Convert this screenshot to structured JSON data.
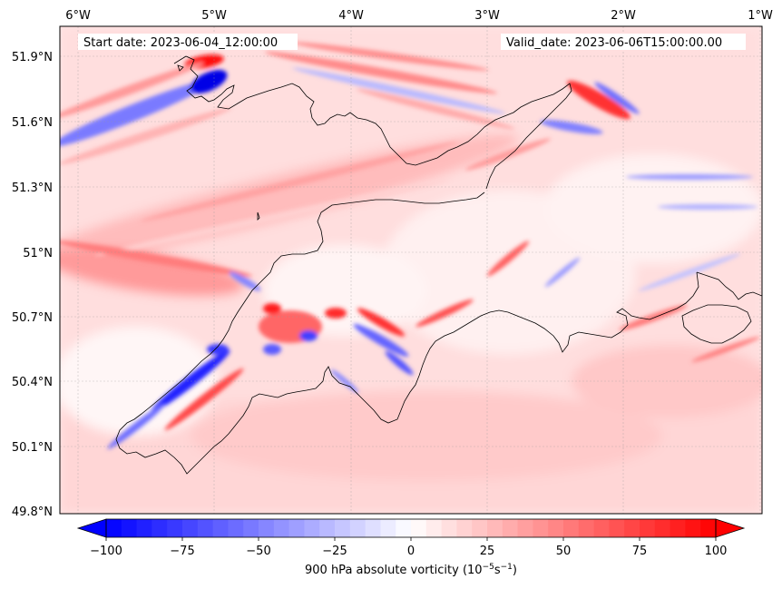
{
  "map": {
    "start_label": "Start date: 2023-06-04_12:00:00",
    "valid_label": "Valid_date: 2023-06-06T15:00:00.00",
    "lon_ticks": [
      "6°W",
      "5°W",
      "4°W",
      "3°W",
      "2°W",
      "1°W"
    ],
    "lat_ticks": [
      "51.9°N",
      "51.6°N",
      "51.3°N",
      "51°N",
      "50.7°N",
      "50.4°N",
      "50.1°N",
      "49.8°N"
    ],
    "extent": {
      "lon_min": -6.15,
      "lon_max": -1.0,
      "lat_min": 49.8,
      "lat_max": 52.05
    },
    "gridlines": true,
    "colors": {
      "positive": "#ff0000",
      "negative": "#0000ff",
      "neutral": "#ffffff",
      "coastline": "#000000"
    }
  },
  "colorbar": {
    "label_prefix": "900 hPa absolute vorticity (10",
    "label_exp1": "−5",
    "label_mid": "s",
    "label_exp2": "−1",
    "label_suffix": ")",
    "min": -100,
    "max": 100,
    "tick_values": [
      -100,
      -75,
      -50,
      -25,
      0,
      25,
      50,
      75,
      100
    ],
    "tick_labels": [
      "−100",
      "−75",
      "−50",
      "−25",
      "0",
      "25",
      "50",
      "75",
      "100"
    ],
    "extend": "both"
  }
}
